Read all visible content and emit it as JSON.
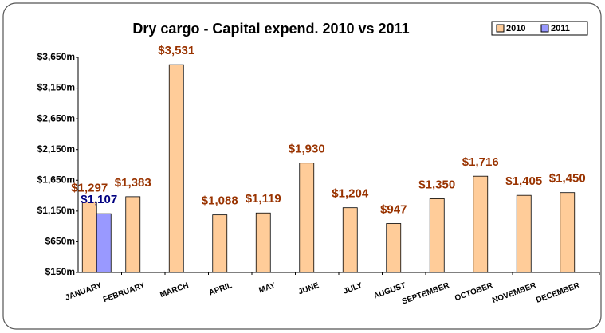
{
  "chart_data": {
    "type": "bar",
    "title": "Dry cargo - Capital expend. 2010 vs 2011",
    "categories": [
      "JANUARY",
      "FEBRUARY",
      "MARCH",
      "APRIL",
      "MAY",
      "JUNE",
      "JULY",
      "AUGUST",
      "SEPTEMBER",
      "OCTOBER",
      "NOVEMBER",
      "DECEMBER"
    ],
    "series": [
      {
        "name": "2010",
        "color": "#ffcc99",
        "label_color": "#993300",
        "values": [
          1297,
          1383,
          3531,
          1088,
          1119,
          1930,
          1204,
          947,
          1350,
          1716,
          1405,
          1450
        ],
        "value_labels": [
          "$1,297",
          "$1,383",
          "$3,531",
          "$1,088",
          "$1,119",
          "$1,930",
          "$1,204",
          "$947",
          "$1,350",
          "$1,716",
          "$1,405",
          "$1,450"
        ]
      },
      {
        "name": "2011",
        "color": "#9999ff",
        "label_color": "#000080",
        "values": [
          1107,
          null,
          null,
          null,
          null,
          null,
          null,
          null,
          null,
          null,
          null,
          null
        ],
        "value_labels": [
          "$1,107",
          null,
          null,
          null,
          null,
          null,
          null,
          null,
          null,
          null,
          null,
          null
        ]
      }
    ],
    "ylim": [
      150,
      3650
    ],
    "yticks": [
      {
        "value": 150,
        "label": "$150m"
      },
      {
        "value": 650,
        "label": "$650m"
      },
      {
        "value": 1150,
        "label": "$1,150m"
      },
      {
        "value": 1650,
        "label": "$1,650m"
      },
      {
        "value": 2150,
        "label": "$2,150m"
      },
      {
        "value": 2650,
        "label": "$2,650m"
      },
      {
        "value": 3150,
        "label": "$3,150m"
      },
      {
        "value": 3650,
        "label": "$3,650m"
      }
    ],
    "grid": false,
    "legend": "top-right"
  }
}
